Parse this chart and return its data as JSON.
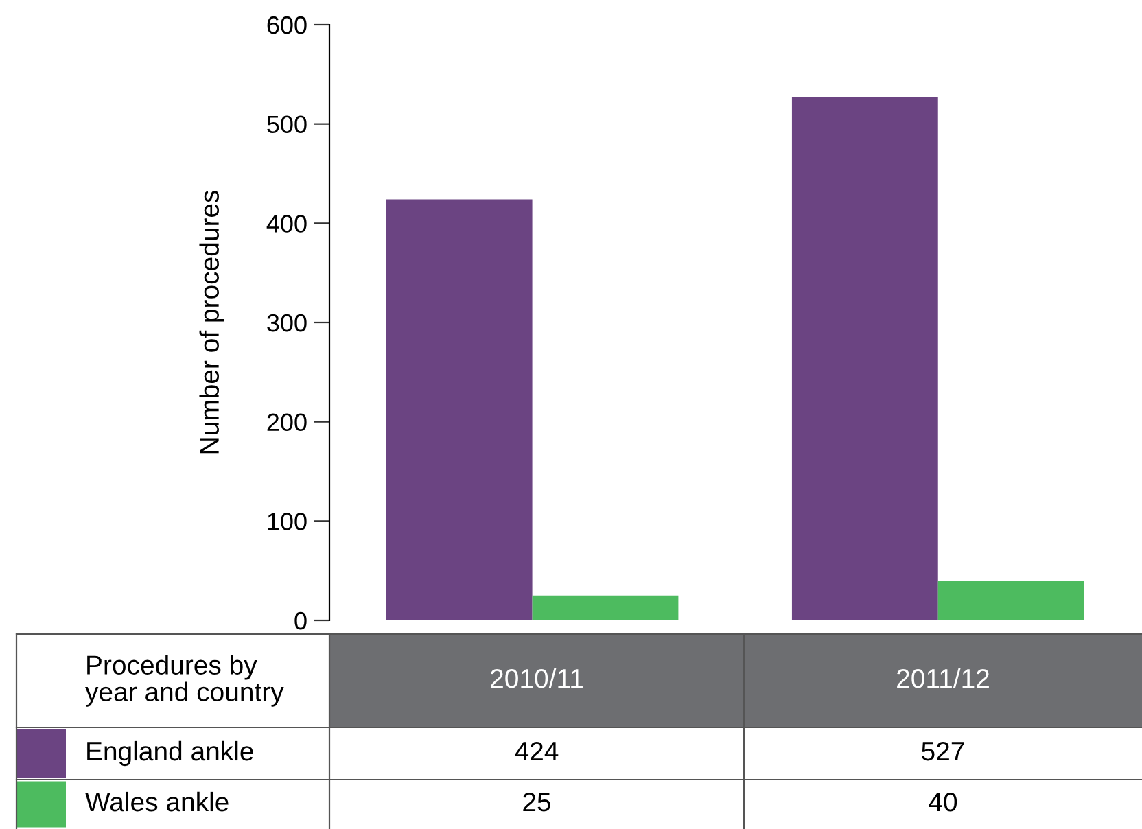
{
  "chart_data": {
    "type": "bar",
    "ylabel": "Number of procedures",
    "legend_title": "Procedures by year and country",
    "categories": [
      "2010/11",
      "2011/12"
    ],
    "series": [
      {
        "name": "England ankle",
        "color": "#6b4482",
        "values": [
          424,
          527
        ]
      },
      {
        "name": "Wales ankle",
        "color": "#4dbb5f",
        "values": [
          25,
          40
        ]
      }
    ],
    "ylim": [
      0,
      600
    ],
    "yticks": [
      0,
      100,
      200,
      300,
      400,
      500,
      600
    ],
    "grid": false,
    "legend": "bottom left",
    "data_labels": true
  }
}
